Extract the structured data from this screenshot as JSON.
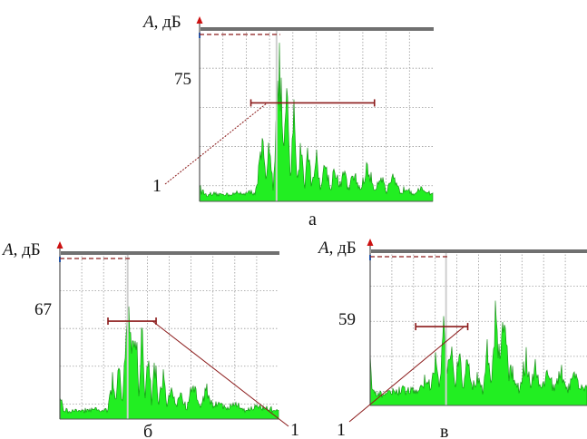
{
  "figure": {
    "panels": [
      {
        "caption": "а",
        "y_label_italic": "A",
        "y_label_rest": ", дБ",
        "peak_label": "75",
        "callout": "1"
      },
      {
        "caption": "б",
        "y_label_italic": "A",
        "y_label_rest": ", дБ",
        "peak_label": "67",
        "callout": "1"
      },
      {
        "caption": "в",
        "y_label_italic": "A",
        "y_label_rest": ", дБ",
        "peak_label": "59",
        "callout": "1"
      }
    ]
  },
  "colors": {
    "fill": "#22ee22",
    "fill_edge": "#118811",
    "grid": "#9a9a9a",
    "axis": "#555555",
    "marker": "#8b1a1a",
    "top_bar": "#707070",
    "arrow": "#cc1111",
    "cursor": "#cfcfcf"
  },
  "chart_data": [
    {
      "type": "area",
      "title": "",
      "caption": "а",
      "ylabel": "A, дБ",
      "y_tick_labels": [
        "75"
      ],
      "peak_value": 75,
      "spectrum": [
        [
          0.0,
          0.12
        ],
        [
          0.008,
          0.07
        ],
        [
          0.03,
          0.04
        ],
        [
          0.15,
          0.05
        ],
        [
          0.24,
          0.06
        ],
        [
          0.27,
          0.42
        ],
        [
          0.285,
          0.12
        ],
        [
          0.3,
          0.48
        ],
        [
          0.315,
          0.1
        ],
        [
          0.33,
          0.65
        ],
        [
          0.345,
          1.0
        ],
        [
          0.36,
          0.35
        ],
        [
          0.375,
          0.75
        ],
        [
          0.39,
          0.15
        ],
        [
          0.405,
          0.65
        ],
        [
          0.42,
          0.14
        ],
        [
          0.435,
          0.45
        ],
        [
          0.45,
          0.1
        ],
        [
          0.465,
          0.4
        ],
        [
          0.48,
          0.12
        ],
        [
          0.5,
          0.33
        ],
        [
          0.52,
          0.09
        ],
        [
          0.54,
          0.3
        ],
        [
          0.56,
          0.08
        ],
        [
          0.58,
          0.26
        ],
        [
          0.6,
          0.09
        ],
        [
          0.62,
          0.22
        ],
        [
          0.64,
          0.07
        ],
        [
          0.66,
          0.2
        ],
        [
          0.69,
          0.08
        ],
        [
          0.72,
          0.25
        ],
        [
          0.75,
          0.08
        ],
        [
          0.78,
          0.2
        ],
        [
          0.8,
          0.06
        ],
        [
          0.83,
          0.16
        ],
        [
          0.86,
          0.06
        ],
        [
          0.89,
          0.1
        ],
        [
          0.92,
          0.05
        ],
        [
          0.95,
          0.08
        ],
        [
          1.0,
          0.05
        ]
      ],
      "vertical_gridlines": 10,
      "horizontal_gridlines": 4,
      "cursor_x": 0.33,
      "bandwidth_marker": {
        "x_start": 0.22,
        "x_end": 0.75,
        "level": 0.59
      }
    },
    {
      "type": "area",
      "title": "",
      "caption": "б",
      "ylabel": "A, дБ",
      "y_tick_labels": [
        "67"
      ],
      "peak_value": 67,
      "spectrum": [
        [
          0.0,
          0.18
        ],
        [
          0.015,
          0.07
        ],
        [
          0.04,
          0.05
        ],
        [
          0.15,
          0.06
        ],
        [
          0.22,
          0.06
        ],
        [
          0.24,
          0.3
        ],
        [
          0.255,
          0.1
        ],
        [
          0.27,
          0.48
        ],
        [
          0.285,
          0.12
        ],
        [
          0.3,
          0.62
        ],
        [
          0.315,
          1.0
        ],
        [
          0.33,
          0.45
        ],
        [
          0.345,
          0.8
        ],
        [
          0.36,
          0.18
        ],
        [
          0.375,
          0.7
        ],
        [
          0.39,
          0.14
        ],
        [
          0.405,
          0.55
        ],
        [
          0.42,
          0.12
        ],
        [
          0.435,
          0.45
        ],
        [
          0.45,
          0.1
        ],
        [
          0.47,
          0.35
        ],
        [
          0.49,
          0.1
        ],
        [
          0.51,
          0.25
        ],
        [
          0.53,
          0.08
        ],
        [
          0.55,
          0.2
        ],
        [
          0.58,
          0.07
        ],
        [
          0.61,
          0.28
        ],
        [
          0.64,
          0.08
        ],
        [
          0.67,
          0.24
        ],
        [
          0.7,
          0.08
        ],
        [
          0.73,
          0.15
        ],
        [
          0.76,
          0.06
        ],
        [
          0.79,
          0.12
        ],
        [
          0.85,
          0.06
        ],
        [
          0.9,
          0.09
        ],
        [
          1.0,
          0.06
        ]
      ],
      "vertical_gridlines": 10,
      "horizontal_gridlines": 4,
      "cursor_x": 0.31,
      "bandwidth_marker": {
        "x_start": 0.22,
        "x_end": 0.44,
        "level": 0.61
      }
    },
    {
      "type": "area",
      "title": "",
      "caption": "в",
      "ylabel": "A, дБ",
      "y_tick_labels": [
        "59"
      ],
      "peak_value": 59,
      "spectrum": [
        [
          0.0,
          0.35
        ],
        [
          0.008,
          0.12
        ],
        [
          0.03,
          0.08
        ],
        [
          0.15,
          0.12
        ],
        [
          0.23,
          0.12
        ],
        [
          0.26,
          0.24
        ],
        [
          0.28,
          0.12
        ],
        [
          0.3,
          0.4
        ],
        [
          0.32,
          0.14
        ],
        [
          0.34,
          0.7
        ],
        [
          0.355,
          0.2
        ],
        [
          0.37,
          0.55
        ],
        [
          0.39,
          0.14
        ],
        [
          0.41,
          0.4
        ],
        [
          0.43,
          0.13
        ],
        [
          0.45,
          0.4
        ],
        [
          0.47,
          0.14
        ],
        [
          0.5,
          0.25
        ],
        [
          0.52,
          0.12
        ],
        [
          0.54,
          0.45
        ],
        [
          0.56,
          0.15
        ],
        [
          0.58,
          0.8
        ],
        [
          0.6,
          0.3
        ],
        [
          0.62,
          0.95
        ],
        [
          0.64,
          0.25
        ],
        [
          0.66,
          0.28
        ],
        [
          0.69,
          0.12
        ],
        [
          0.72,
          0.42
        ],
        [
          0.74,
          0.15
        ],
        [
          0.76,
          0.33
        ],
        [
          0.79,
          0.12
        ],
        [
          0.82,
          0.3
        ],
        [
          0.85,
          0.12
        ],
        [
          0.88,
          0.28
        ],
        [
          0.91,
          0.12
        ],
        [
          0.94,
          0.25
        ],
        [
          0.97,
          0.12
        ],
        [
          1.0,
          0.18
        ]
      ],
      "vertical_gridlines": 10,
      "horizontal_gridlines": 4,
      "cursor_x": 0.35,
      "bandwidth_marker": {
        "x_start": 0.21,
        "x_end": 0.45,
        "level": 0.53
      }
    }
  ]
}
